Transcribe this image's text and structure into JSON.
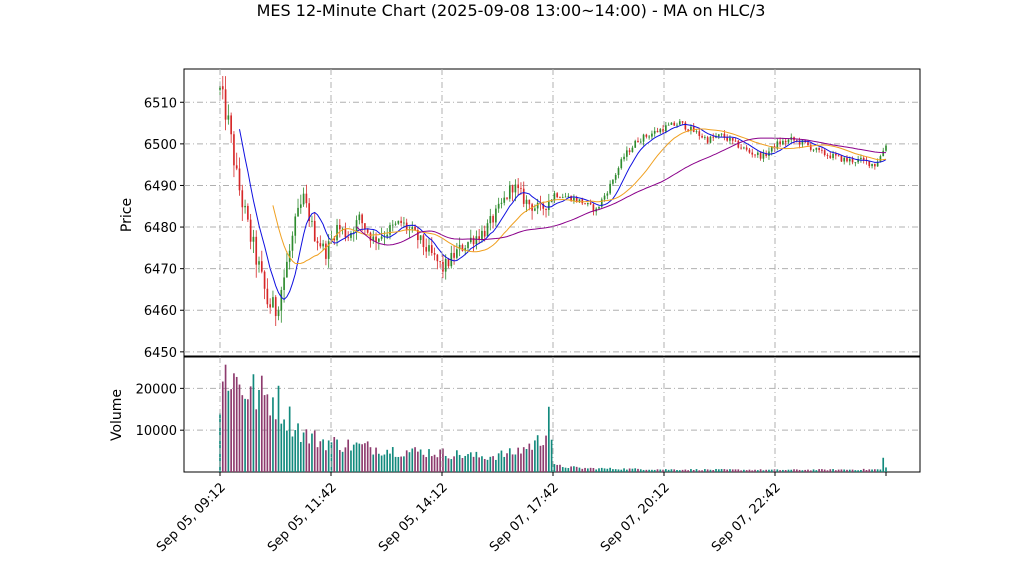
{
  "chart_data": {
    "type": "candlestick",
    "title": "MES 12-Minute Chart (2025-09-08 13:00~14:00) - MA on HLC/3",
    "price_panel": {
      "ylabel": "Price",
      "ylim": [
        6449,
        6518
      ],
      "yticks": [
        6450,
        6460,
        6470,
        6480,
        6490,
        6500,
        6510
      ],
      "grid": true
    },
    "volume_panel": {
      "ylabel": "Volume",
      "ylim": [
        0,
        27500
      ],
      "yticks": [
        10000,
        20000
      ],
      "grid": true
    },
    "x_tick_labels": [
      "Sep 05, 09:12",
      "Sep 05, 11:42",
      "Sep 05, 14:12",
      "Sep 07, 17:42",
      "Sep 07, 20:12",
      "Sep 07, 22:42"
    ],
    "bar_count": 240,
    "colors": {
      "up": "#2e8b2e",
      "down": "#d62728",
      "vol_up": "#128a7d",
      "vol_down": "#8e3b6e",
      "ma_fast": "#1010e0",
      "ma_mid": "#f0a020",
      "ma_slow": "#8b008b"
    },
    "price_path": [
      [
        0,
        6513
      ],
      [
        3,
        6505
      ],
      [
        6,
        6492
      ],
      [
        10,
        6480
      ],
      [
        14,
        6470
      ],
      [
        17,
        6462
      ],
      [
        20,
        6460
      ],
      [
        23,
        6468
      ],
      [
        27,
        6480
      ],
      [
        30,
        6487
      ],
      [
        34,
        6478
      ],
      [
        38,
        6474
      ],
      [
        42,
        6480
      ],
      [
        46,
        6478
      ],
      [
        50,
        6482
      ],
      [
        55,
        6477
      ],
      [
        60,
        6479
      ],
      [
        65,
        6481
      ],
      [
        70,
        6478
      ],
      [
        75,
        6474
      ],
      [
        80,
        6470
      ],
      [
        85,
        6474
      ],
      [
        90,
        6477
      ],
      [
        95,
        6479
      ],
      [
        100,
        6484
      ],
      [
        105,
        6490
      ],
      [
        110,
        6486
      ],
      [
        115,
        6484
      ],
      [
        120,
        6488
      ],
      [
        126,
        6487
      ],
      [
        130,
        6486
      ],
      [
        135,
        6484
      ],
      [
        140,
        6490
      ],
      [
        145,
        6497
      ],
      [
        150,
        6501
      ],
      [
        160,
        6504
      ],
      [
        165,
        6505
      ],
      [
        170,
        6503
      ],
      [
        175,
        6501
      ],
      [
        180,
        6502
      ],
      [
        185,
        6500
      ],
      [
        190,
        6498
      ],
      [
        195,
        6497
      ],
      [
        200,
        6500
      ],
      [
        205,
        6501
      ],
      [
        210,
        6500
      ],
      [
        215,
        6498
      ],
      [
        220,
        6497
      ],
      [
        225,
        6496
      ],
      [
        230,
        6496
      ],
      [
        235,
        6495
      ],
      [
        237,
        6497
      ],
      [
        239,
        6500
      ]
    ],
    "volume_path": [
      [
        0,
        14000
      ],
      [
        2,
        25000
      ],
      [
        6,
        21500
      ],
      [
        12,
        19000
      ],
      [
        16,
        18000
      ],
      [
        20,
        17500
      ],
      [
        24,
        13500
      ],
      [
        30,
        9000
      ],
      [
        36,
        7500
      ],
      [
        45,
        6500
      ],
      [
        55,
        5800
      ],
      [
        65,
        5000
      ],
      [
        75,
        4800
      ],
      [
        85,
        4200
      ],
      [
        95,
        3600
      ],
      [
        105,
        4500
      ],
      [
        112,
        6500
      ],
      [
        116,
        8000
      ],
      [
        118,
        16000
      ],
      [
        120,
        1500
      ],
      [
        130,
        900
      ],
      [
        140,
        800
      ],
      [
        160,
        600
      ],
      [
        200,
        500
      ],
      [
        237,
        600
      ],
      [
        238,
        3000
      ],
      [
        239,
        1000
      ]
    ],
    "series": [
      {
        "name": "",
        "role": "ma_fast",
        "window": 8
      },
      {
        "name": "",
        "role": "ma_mid",
        "window": 20
      },
      {
        "name": "",
        "role": "ma_slow",
        "window": 50
      }
    ]
  }
}
